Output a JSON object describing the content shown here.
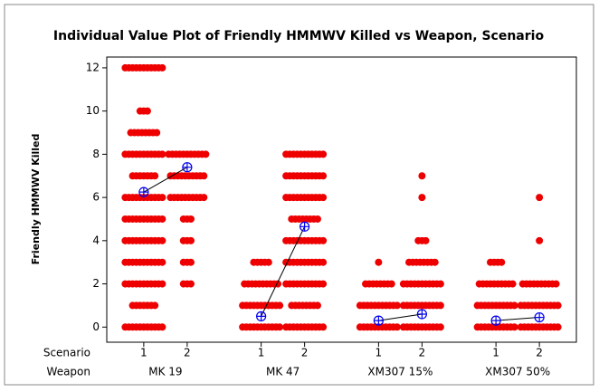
{
  "chart_data": {
    "type": "individual_value",
    "title": "Individual Value Plot of Friendly HMMWV Killed vs Weapon, Scenario",
    "ylabel": "Friendly HMMWV Killed",
    "row_labels": [
      "Scenario",
      "Weapon"
    ],
    "dot_color": "#ee0000",
    "mean_color": "#0000ee",
    "ylim": [
      -0.7,
      12.5
    ],
    "yticks": [
      0,
      2,
      4,
      6,
      8,
      10,
      12
    ],
    "groups": [
      {
        "weapon": "MK 19",
        "scenarios": [
          {
            "label": "1",
            "values": [
              0,
              1,
              2,
              3,
              4,
              5,
              6,
              7,
              8,
              9,
              10,
              12
            ],
            "counts": [
              11,
              7,
              11,
              11,
              11,
              11,
              11,
              7,
              11,
              8,
              3,
              11
            ],
            "mean": 6.25
          },
          {
            "label": "2",
            "values": [
              2,
              3,
              4,
              5,
              6,
              7,
              8
            ],
            "counts": [
              3,
              3,
              3,
              3,
              10,
              10,
              11
            ],
            "mean": 7.4
          }
        ]
      },
      {
        "weapon": "MK 47",
        "scenarios": [
          {
            "label": "1",
            "values": [
              0,
              1,
              2,
              3
            ],
            "counts": [
              11,
              11,
              10,
              5
            ],
            "mean": 0.5
          },
          {
            "label": "2",
            "values": [
              0,
              1,
              2,
              3,
              4,
              5,
              6,
              7,
              8
            ],
            "counts": [
              11,
              8,
              11,
              11,
              11,
              8,
              11,
              11,
              11
            ],
            "mean": 4.65
          }
        ]
      },
      {
        "weapon": "XM307 15%",
        "scenarios": [
          {
            "label": "1",
            "values": [
              0,
              1,
              2,
              3
            ],
            "counts": [
              11,
              11,
              8,
              1
            ],
            "mean": 0.3
          },
          {
            "label": "2",
            "values": [
              0,
              1,
              2,
              3,
              4,
              6,
              7
            ],
            "counts": [
              11,
              11,
              11,
              8,
              3,
              1,
              1
            ],
            "mean": 0.6
          }
        ]
      },
      {
        "weapon": "XM307 50%",
        "scenarios": [
          {
            "label": "1",
            "values": [
              0,
              1,
              2,
              3
            ],
            "counts": [
              11,
              11,
              10,
              4
            ],
            "mean": 0.3
          },
          {
            "label": "2",
            "values": [
              0,
              1,
              2,
              4,
              6
            ],
            "counts": [
              11,
              11,
              10,
              1,
              1
            ],
            "mean": 0.45
          }
        ]
      }
    ]
  }
}
